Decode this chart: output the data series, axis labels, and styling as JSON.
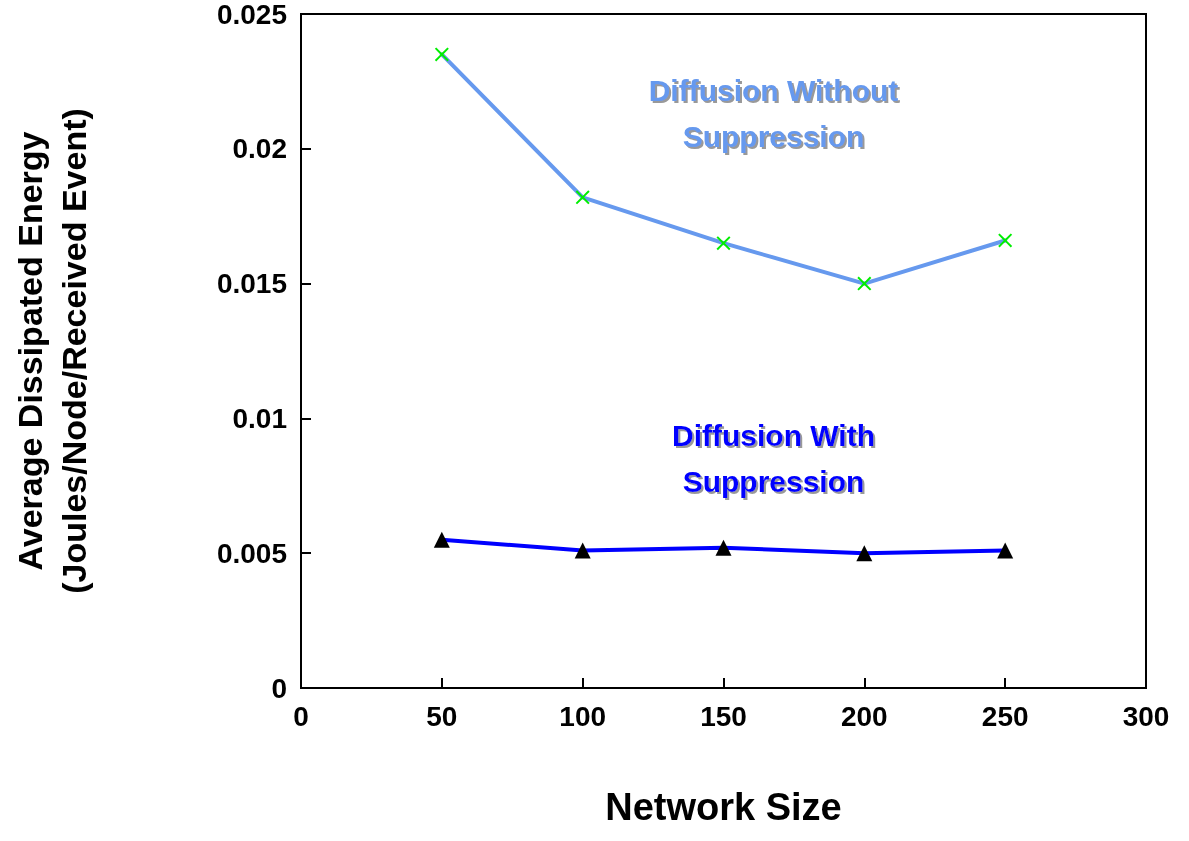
{
  "chart_data": {
    "type": "line",
    "xlabel": "Network Size",
    "ylabel": "Average Dissipated Energy\n(Joules/Node/Received Event)",
    "x": [
      50,
      100,
      150,
      200,
      250
    ],
    "series": [
      {
        "name": "Diffusion Without Suppression",
        "color": "#6699ee",
        "marker": "cross",
        "colors": [
          "#00ee00",
          "#00ee00",
          "#00ee00",
          "#00ee00",
          "#00ee00"
        ],
        "values": [
          0.0235,
          0.0182,
          0.0165,
          0.015,
          0.0166
        ]
      },
      {
        "name": "Diffusion With Suppression",
        "color": "#0000ff",
        "marker": "triangle",
        "colors": [
          "#000000",
          "#000000",
          "#000000",
          "#000000",
          "#000000"
        ],
        "values": [
          0.0055,
          0.0051,
          0.0052,
          0.005,
          0.0051
        ]
      }
    ],
    "xlim": [
      0,
      300
    ],
    "xticks": [
      0,
      50,
      100,
      150,
      200,
      250,
      300
    ],
    "ylim": [
      0,
      0.025
    ],
    "yticks": [
      0,
      0.005,
      0.01,
      0.015,
      0.02,
      0.025
    ],
    "grid": false,
    "legend": false,
    "line_style": "solid"
  }
}
